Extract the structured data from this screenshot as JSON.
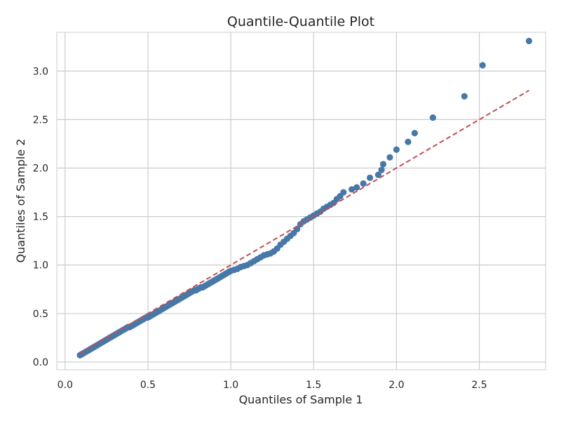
{
  "chart_data": {
    "type": "scatter",
    "title": "Quantile-Quantile Plot",
    "xlabel": "Quantiles of Sample 1",
    "ylabel": "Quantiles of Sample 2",
    "xlim": [
      -0.05,
      2.9
    ],
    "ylim": [
      -0.08,
      3.4
    ],
    "x_ticks": [
      0.0,
      0.5,
      1.0,
      1.5,
      2.0,
      2.5
    ],
    "y_ticks": [
      0.0,
      0.5,
      1.0,
      1.5,
      2.0,
      2.5,
      3.0
    ],
    "x_tick_labels": [
      "0.0",
      "0.5",
      "1.0",
      "1.5",
      "2.0",
      "2.5"
    ],
    "y_tick_labels": [
      "0.0",
      "0.5",
      "1.0",
      "1.5",
      "2.0",
      "2.5",
      "3.0"
    ],
    "grid": true,
    "reference_line": {
      "style": "dashed",
      "color": "#c44e52",
      "x": [
        0.09,
        2.8
      ],
      "y": [
        0.09,
        2.8
      ]
    },
    "marker_color": "#4878a8",
    "points": [
      [
        0.09,
        0.07
      ],
      [
        0.1,
        0.08
      ],
      [
        0.11,
        0.09
      ],
      [
        0.12,
        0.1
      ],
      [
        0.13,
        0.11
      ],
      [
        0.14,
        0.12
      ],
      [
        0.15,
        0.13
      ],
      [
        0.16,
        0.14
      ],
      [
        0.17,
        0.15
      ],
      [
        0.18,
        0.16
      ],
      [
        0.19,
        0.17
      ],
      [
        0.2,
        0.18
      ],
      [
        0.21,
        0.19
      ],
      [
        0.22,
        0.2
      ],
      [
        0.23,
        0.21
      ],
      [
        0.24,
        0.22
      ],
      [
        0.25,
        0.23
      ],
      [
        0.26,
        0.24
      ],
      [
        0.27,
        0.25
      ],
      [
        0.28,
        0.26
      ],
      [
        0.29,
        0.27
      ],
      [
        0.3,
        0.28
      ],
      [
        0.31,
        0.29
      ],
      [
        0.32,
        0.3
      ],
      [
        0.33,
        0.31
      ],
      [
        0.34,
        0.32
      ],
      [
        0.35,
        0.33
      ],
      [
        0.36,
        0.34
      ],
      [
        0.37,
        0.35
      ],
      [
        0.38,
        0.36
      ],
      [
        0.39,
        0.36
      ],
      [
        0.4,
        0.37
      ],
      [
        0.41,
        0.38
      ],
      [
        0.42,
        0.39
      ],
      [
        0.43,
        0.4
      ],
      [
        0.44,
        0.41
      ],
      [
        0.45,
        0.42
      ],
      [
        0.46,
        0.43
      ],
      [
        0.47,
        0.44
      ],
      [
        0.48,
        0.45
      ],
      [
        0.49,
        0.46
      ],
      [
        0.5,
        0.46
      ],
      [
        0.51,
        0.47
      ],
      [
        0.52,
        0.48
      ],
      [
        0.53,
        0.49
      ],
      [
        0.54,
        0.5
      ],
      [
        0.55,
        0.51
      ],
      [
        0.56,
        0.52
      ],
      [
        0.57,
        0.53
      ],
      [
        0.58,
        0.54
      ],
      [
        0.59,
        0.55
      ],
      [
        0.6,
        0.56
      ],
      [
        0.61,
        0.57
      ],
      [
        0.62,
        0.58
      ],
      [
        0.63,
        0.59
      ],
      [
        0.64,
        0.6
      ],
      [
        0.65,
        0.61
      ],
      [
        0.66,
        0.62
      ],
      [
        0.67,
        0.63
      ],
      [
        0.68,
        0.64
      ],
      [
        0.69,
        0.65
      ],
      [
        0.7,
        0.66
      ],
      [
        0.71,
        0.67
      ],
      [
        0.72,
        0.68
      ],
      [
        0.73,
        0.69
      ],
      [
        0.74,
        0.7
      ],
      [
        0.75,
        0.71
      ],
      [
        0.76,
        0.72
      ],
      [
        0.77,
        0.73
      ],
      [
        0.78,
        0.74
      ],
      [
        0.79,
        0.74
      ],
      [
        0.8,
        0.75
      ],
      [
        0.81,
        0.76
      ],
      [
        0.82,
        0.77
      ],
      [
        0.83,
        0.77
      ],
      [
        0.84,
        0.78
      ],
      [
        0.85,
        0.79
      ],
      [
        0.86,
        0.8
      ],
      [
        0.87,
        0.81
      ],
      [
        0.88,
        0.82
      ],
      [
        0.89,
        0.83
      ],
      [
        0.9,
        0.84
      ],
      [
        0.91,
        0.85
      ],
      [
        0.92,
        0.86
      ],
      [
        0.93,
        0.87
      ],
      [
        0.94,
        0.88
      ],
      [
        0.95,
        0.89
      ],
      [
        0.96,
        0.9
      ],
      [
        0.97,
        0.91
      ],
      [
        0.98,
        0.92
      ],
      [
        0.99,
        0.93
      ],
      [
        1.0,
        0.94
      ],
      [
        1.02,
        0.95
      ],
      [
        1.04,
        0.96
      ],
      [
        1.06,
        0.98
      ],
      [
        1.08,
        0.99
      ],
      [
        1.1,
        1.0
      ],
      [
        1.12,
        1.02
      ],
      [
        1.14,
        1.04
      ],
      [
        1.16,
        1.06
      ],
      [
        1.18,
        1.08
      ],
      [
        1.2,
        1.1
      ],
      [
        1.22,
        1.11
      ],
      [
        1.24,
        1.12
      ],
      [
        1.26,
        1.14
      ],
      [
        1.28,
        1.17
      ],
      [
        1.3,
        1.21
      ],
      [
        1.32,
        1.24
      ],
      [
        1.34,
        1.27
      ],
      [
        1.36,
        1.3
      ],
      [
        1.38,
        1.33
      ],
      [
        1.4,
        1.37
      ],
      [
        1.42,
        1.42
      ],
      [
        1.44,
        1.45
      ],
      [
        1.46,
        1.47
      ],
      [
        1.48,
        1.49
      ],
      [
        1.5,
        1.51
      ],
      [
        1.52,
        1.53
      ],
      [
        1.54,
        1.55
      ],
      [
        1.56,
        1.58
      ],
      [
        1.58,
        1.6
      ],
      [
        1.6,
        1.62
      ],
      [
        1.62,
        1.64
      ],
      [
        1.64,
        1.68
      ],
      [
        1.66,
        1.71
      ],
      [
        1.68,
        1.75
      ],
      [
        1.73,
        1.78
      ],
      [
        1.76,
        1.8
      ],
      [
        1.8,
        1.84
      ],
      [
        1.84,
        1.9
      ],
      [
        1.89,
        1.93
      ],
      [
        1.91,
        1.98
      ],
      [
        1.92,
        2.04
      ],
      [
        1.96,
        2.11
      ],
      [
        2.0,
        2.19
      ],
      [
        2.07,
        2.27
      ],
      [
        2.11,
        2.36
      ],
      [
        2.22,
        2.52
      ],
      [
        2.41,
        2.74
      ],
      [
        2.52,
        3.06
      ],
      [
        2.8,
        3.31
      ]
    ]
  }
}
